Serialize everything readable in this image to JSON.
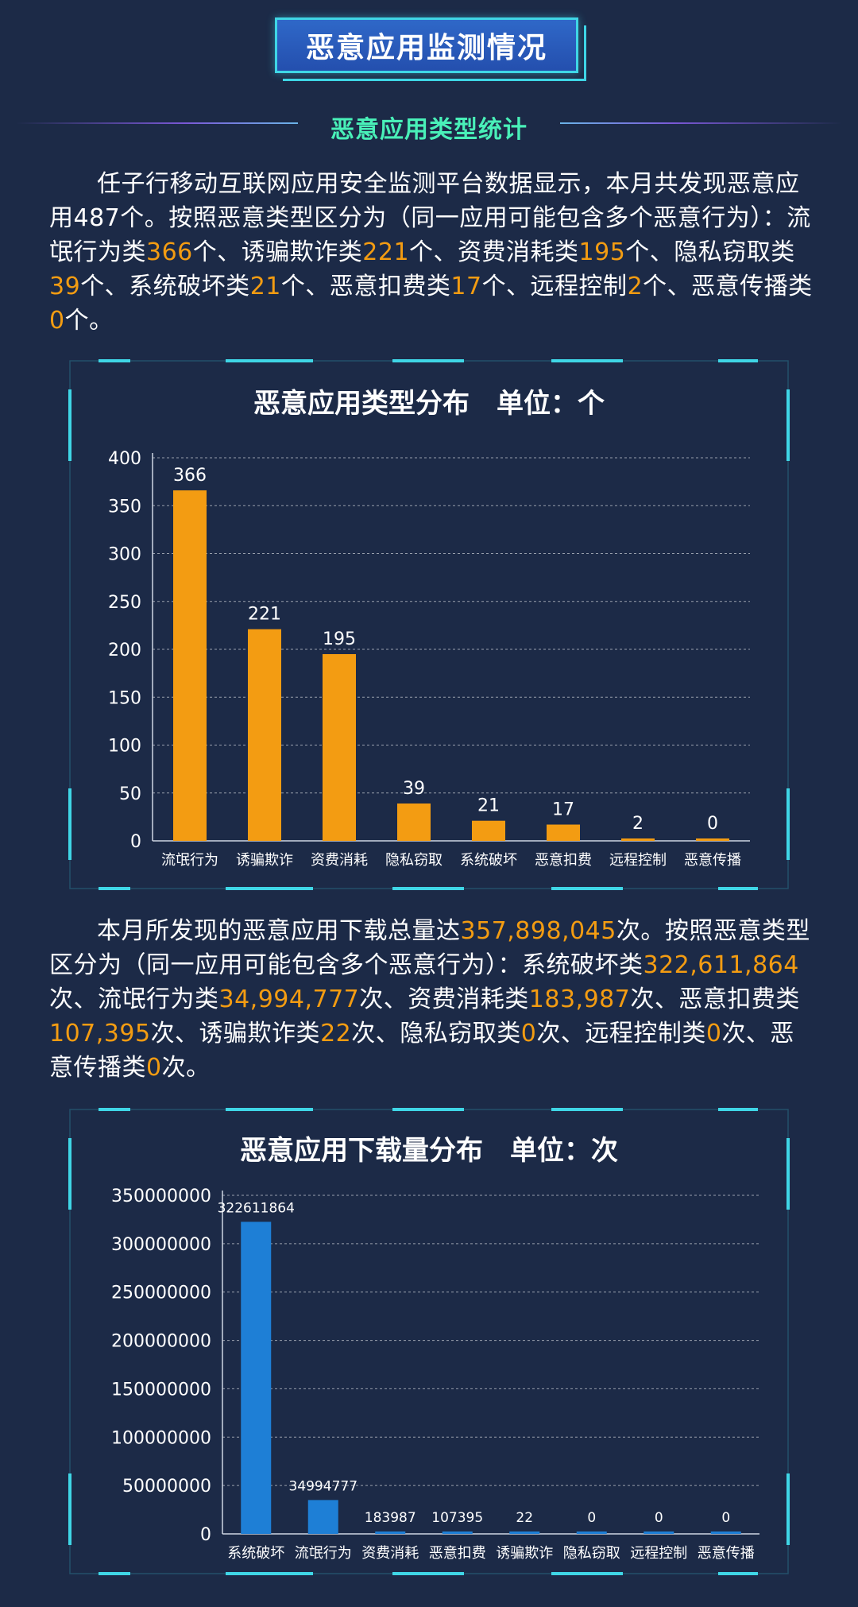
{
  "header": {
    "title": "恶意应用监测情况",
    "subtitle": "恶意应用类型统计"
  },
  "paragraph1": {
    "segments": [
      {
        "t": "任子行移动互联网应用安全监测平台数据显示，本月共发现恶意应用487个。按照恶意类型区分为（同一应用可能包含多个恶意行为）：流氓行为类"
      },
      {
        "t": "366",
        "hl": true
      },
      {
        "t": "个、诱骗欺诈类"
      },
      {
        "t": "221",
        "hl": true
      },
      {
        "t": "个、资费消耗类"
      },
      {
        "t": "195",
        "hl": true
      },
      {
        "t": "个、隐私窃取类"
      },
      {
        "t": "39",
        "hl": true
      },
      {
        "t": "个、系统破坏类"
      },
      {
        "t": "21",
        "hl": true
      },
      {
        "t": "个、恶意扣费类"
      },
      {
        "t": "17",
        "hl": true
      },
      {
        "t": "个、远程控制"
      },
      {
        "t": "2",
        "hl": true
      },
      {
        "t": "个、恶意传播类"
      },
      {
        "t": "0",
        "hl": true
      },
      {
        "t": "个。"
      }
    ]
  },
  "paragraph2": {
    "segments": [
      {
        "t": "本月所发现的恶意应用下载总量达"
      },
      {
        "t": "357,898,045",
        "hl": true
      },
      {
        "t": "次。按照恶意类型区分为（同一应用可能包含多个恶意行为）：系统破坏类"
      },
      {
        "t": "322,611,864",
        "hl": true
      },
      {
        "t": "次、流氓行为类"
      },
      {
        "t": "34,994,777",
        "hl": true
      },
      {
        "t": "次、资费消耗类"
      },
      {
        "t": "183,987",
        "hl": true
      },
      {
        "t": "次、恶意扣费类"
      },
      {
        "t": "107,395",
        "hl": true
      },
      {
        "t": "次、诱骗欺诈类"
      },
      {
        "t": "22",
        "hl": true
      },
      {
        "t": "次、隐私窃取类"
      },
      {
        "t": "0",
        "hl": true
      },
      {
        "t": "次、远程控制类"
      },
      {
        "t": "0",
        "hl": true
      },
      {
        "t": "次、恶意传播类"
      },
      {
        "t": "0",
        "hl": true
      },
      {
        "t": "次。"
      }
    ]
  },
  "colors": {
    "highlight": "#f39c12",
    "bar1": "#f39c12",
    "bar2": "#1e7fd6",
    "accent": "#3fd6e6",
    "subtitle": "#49f0b8"
  },
  "chart_data": [
    {
      "type": "bar",
      "title": "恶意应用类型分布　单位：个",
      "categories": [
        "流氓行为",
        "诱骗欺诈",
        "资费消耗",
        "隐私窃取",
        "系统破坏",
        "恶意扣费",
        "远程控制",
        "恶意传播"
      ],
      "values": [
        366,
        221,
        195,
        39,
        21,
        17,
        2,
        0
      ],
      "ylim": [
        0,
        400
      ],
      "yticks": [
        0,
        50,
        100,
        150,
        200,
        250,
        300,
        350,
        400
      ],
      "grid": true
    },
    {
      "type": "bar",
      "title": "恶意应用下载量分布　单位：次",
      "categories": [
        "系统破坏",
        "流氓行为",
        "资费消耗",
        "恶意扣费",
        "诱骗欺诈",
        "隐私窃取",
        "远程控制",
        "恶意传播"
      ],
      "values": [
        322611864,
        34994777,
        183987,
        107395,
        22,
        0,
        0,
        0
      ],
      "ylim": [
        0,
        350000000
      ],
      "yticks": [
        0,
        50000000,
        100000000,
        150000000,
        200000000,
        250000000,
        300000000,
        350000000
      ],
      "grid": true
    }
  ]
}
